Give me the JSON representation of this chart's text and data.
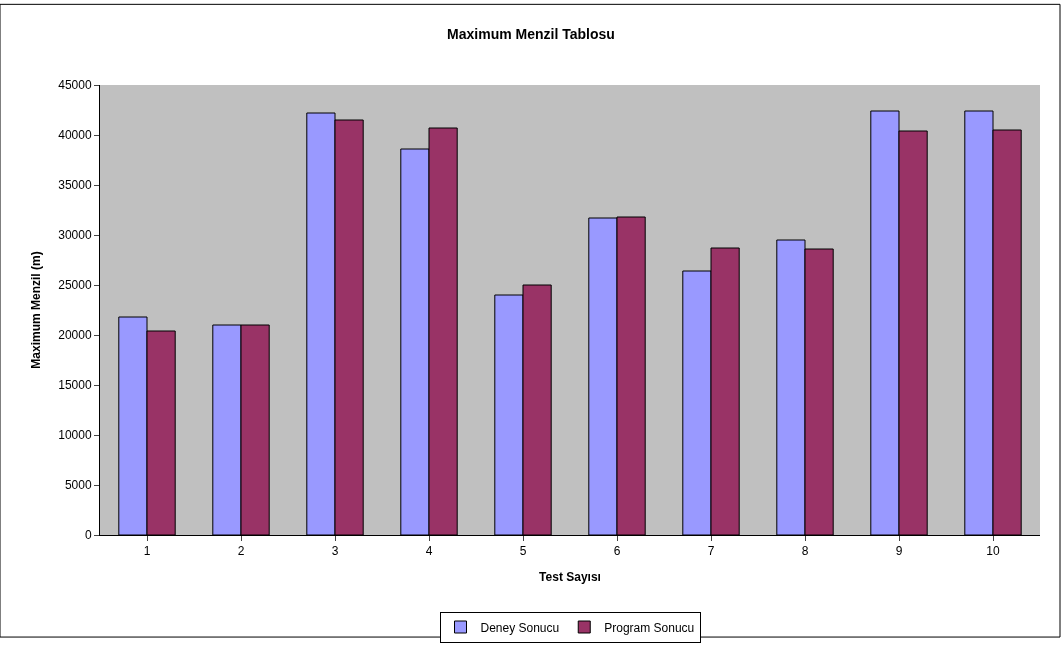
{
  "chart_data": {
    "type": "bar",
    "title": "Maximum Menzil Tablosu",
    "xlabel": "Test Sayısı",
    "ylabel": "Maximum Menzil (m)",
    "categories": [
      "1",
      "2",
      "3",
      "4",
      "5",
      "6",
      "7",
      "8",
      "9",
      "10"
    ],
    "series": [
      {
        "name": "Deney Sonucu",
        "color": "#9999ff",
        "values": [
          21800,
          21000,
          42200,
          38600,
          24000,
          31700,
          26400,
          29500,
          42400,
          42400
        ]
      },
      {
        "name": "Program Sonucu",
        "color": "#993366",
        "values": [
          20400,
          21000,
          41500,
          40700,
          25000,
          31800,
          28700,
          28600,
          40400,
          40500
        ]
      }
    ],
    "ylim": [
      0,
      45000
    ],
    "yticks": [
      0,
      5000,
      10000,
      15000,
      20000,
      25000,
      30000,
      35000,
      40000,
      45000
    ],
    "grid": false,
    "legend": "bottom"
  }
}
